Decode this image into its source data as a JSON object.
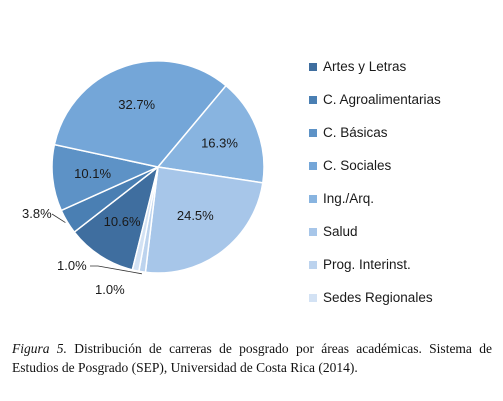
{
  "chart_data": {
    "type": "pie",
    "categories": [
      "Artes y Letras",
      "C. Agroalimentarias",
      "C. Básicas",
      "C. Sociales",
      "Ing./Arq.",
      "Salud",
      "Prog. Interinst.",
      "Sedes Regionales"
    ],
    "values": [
      10.6,
      3.8,
      10.1,
      32.7,
      16.3,
      24.5,
      1.0,
      1.0
    ],
    "labels": [
      "10.6%",
      "3.8%",
      "10.1%",
      "32.7%",
      "16.3%",
      "24.5%",
      "1.0%",
      "1.0%"
    ],
    "colors": [
      "#3f6e9f",
      "#4a7fb3",
      "#5d92c6",
      "#74a6d8",
      "#88b4e0",
      "#a7c6e9",
      "#bcd3ee",
      "#d3e2f4"
    ],
    "legend_position": "right"
  },
  "caption": {
    "figure_label": "Figura 5.",
    "text": " Distribución de carreras de posgrado por áreas académicas. Sistema de Estudios de Posgrado (SEP), Universidad de Costa Rica (2014)."
  }
}
